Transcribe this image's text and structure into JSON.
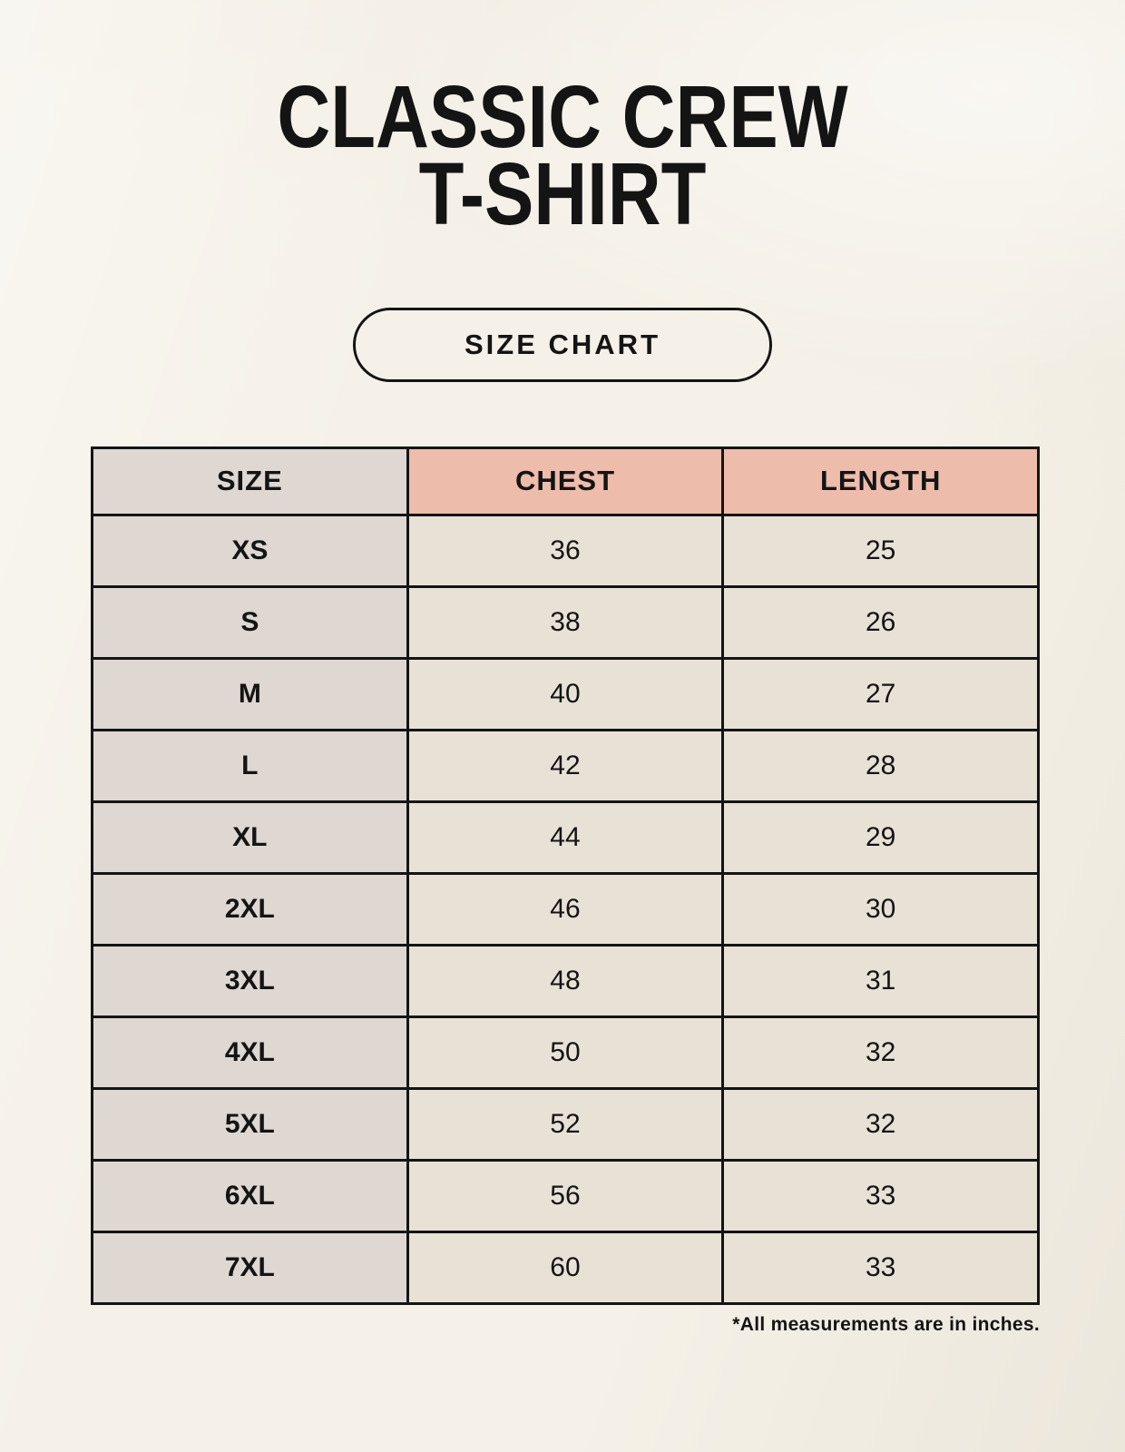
{
  "header": {
    "title_line1": "CLASSIC CREW",
    "title_line2": "T-SHIRT",
    "badge_label": "SIZE CHART"
  },
  "colors": {
    "background": "#f5f1e8",
    "header_accent": "#eebcab",
    "size_column": "#ded7d2",
    "data_cell": "#e8e1d6",
    "border_and_text": "#141414"
  },
  "chart_data": {
    "type": "table",
    "title": "CLASSIC CREW T-SHIRT",
    "subtitle": "SIZE CHART",
    "columns": [
      "SIZE",
      "CHEST",
      "LENGTH"
    ],
    "rows": [
      [
        "XS",
        "36",
        "25"
      ],
      [
        "S",
        "38",
        "26"
      ],
      [
        "M",
        "40",
        "27"
      ],
      [
        "L",
        "42",
        "28"
      ],
      [
        "XL",
        "44",
        "29"
      ],
      [
        "2XL",
        "46",
        "30"
      ],
      [
        "3XL",
        "48",
        "31"
      ],
      [
        "4XL",
        "50",
        "32"
      ],
      [
        "5XL",
        "52",
        "32"
      ],
      [
        "6XL",
        "56",
        "33"
      ],
      [
        "7XL",
        "60",
        "33"
      ]
    ],
    "footnote": "*All measurements are in inches.",
    "units": "inches"
  }
}
